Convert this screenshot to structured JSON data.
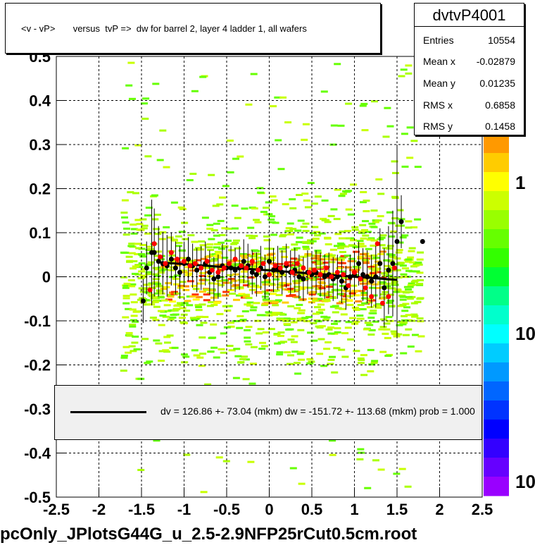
{
  "title": "<v - vP>       versus  tvP =>  dw for barrel 2, layer 4 ladder 1, all wafers",
  "stats": {
    "name": "dvtvP4001",
    "rows": [
      {
        "label": "Entries",
        "value": "10554"
      },
      {
        "label": "Mean x",
        "value": "-0.02879"
      },
      {
        "label": "Mean y",
        "value": "0.01235"
      },
      {
        "label": "RMS x",
        "value": "0.6858"
      },
      {
        "label": "RMS y",
        "value": "0.1458"
      }
    ]
  },
  "fit_legend": "dv =  126.86 +- 73.04 (mkm) dw = -151.72 +- 113.68 (mkm) prob = 1.000",
  "file_label": "pcOnly_JPlotsG44G_u_2.5-2.9NFP25rCut0.5cm.root",
  "colors": {
    "black_points": "#000000",
    "red_points": "#ff0000",
    "fit_line": "#000000"
  },
  "chart_data": {
    "type": "scatter",
    "title": "<v - vP>       versus  tvP =>  dw for barrel 2, layer 4 ladder 1, all wafers",
    "xlim": [
      -2.5,
      2.5
    ],
    "ylim": [
      -0.5,
      0.5
    ],
    "x_ticks": [
      "-2.5",
      "-2",
      "-1.5",
      "-1",
      "-0.5",
      "0",
      "0.5",
      "1",
      "1.5",
      "2",
      "2.5"
    ],
    "y_ticks": [
      "-0.5",
      "-0.4",
      "-0.3",
      "-0.2",
      "-0.1",
      "0",
      "0.1",
      "0.2",
      "0.3",
      "0.4",
      "0.5"
    ],
    "grid": true,
    "colorbar_labels": [
      "1",
      "10",
      "10"
    ],
    "fit_line": {
      "x": [
        -1.3,
        1.5
      ],
      "y": [
        0.033,
        -0.007
      ]
    },
    "black_series": {
      "x": [
        -1.48,
        -1.44,
        -1.38,
        -1.35,
        -1.3,
        -1.25,
        -1.2,
        -1.15,
        -1.1,
        -1.05,
        -1.0,
        -0.95,
        -0.9,
        -0.85,
        -0.8,
        -0.75,
        -0.7,
        -0.65,
        -0.6,
        -0.55,
        -0.5,
        -0.45,
        -0.4,
        -0.35,
        -0.3,
        -0.25,
        -0.2,
        -0.15,
        -0.1,
        -0.05,
        0.0,
        0.05,
        0.1,
        0.15,
        0.2,
        0.25,
        0.3,
        0.35,
        0.4,
        0.45,
        0.5,
        0.55,
        0.6,
        0.65,
        0.7,
        0.75,
        0.8,
        0.85,
        0.9,
        0.95,
        1.0,
        1.05,
        1.1,
        1.15,
        1.2,
        1.25,
        1.3,
        1.35,
        1.4,
        1.45,
        1.5,
        1.55,
        1.8
      ],
      "y": [
        -0.055,
        0.02,
        0.055,
        0.055,
        0.035,
        0.03,
        0.025,
        0.04,
        0.02,
        0.01,
        0.03,
        0.04,
        0.025,
        0.015,
        0.02,
        0.03,
        0.01,
        -0.005,
        0.0,
        0.025,
        0.02,
        0.02,
        0.015,
        0.02,
        0.035,
        0.025,
        0.01,
        0.005,
        0.02,
        0.0,
        0.035,
        0.015,
        0.02,
        0.01,
        0.025,
        0.01,
        0.015,
        0.0,
        -0.005,
        0.01,
        0.005,
        0.01,
        0.005,
        0.0,
        0.005,
        -0.005,
        0.0,
        -0.01,
        -0.025,
        0.0,
        0.005,
        0.03,
        0.005,
        0.0,
        -0.01,
        0.0,
        0.03,
        -0.025,
        0.015,
        0.03,
        0.08,
        0.125,
        0.08
      ],
      "err": [
        0.05,
        0.06,
        0.12,
        0.1,
        0.08,
        0.07,
        0.07,
        0.06,
        0.06,
        0.06,
        0.05,
        0.05,
        0.05,
        0.05,
        0.05,
        0.05,
        0.05,
        0.05,
        0.05,
        0.05,
        0.05,
        0.05,
        0.05,
        0.05,
        0.05,
        0.05,
        0.05,
        0.05,
        0.05,
        0.05,
        0.05,
        0.05,
        0.05,
        0.05,
        0.05,
        0.05,
        0.05,
        0.05,
        0.05,
        0.05,
        0.05,
        0.05,
        0.05,
        0.05,
        0.05,
        0.05,
        0.05,
        0.05,
        0.05,
        0.05,
        0.05,
        0.05,
        0.06,
        0.06,
        0.06,
        0.07,
        0.08,
        0.09,
        0.1,
        0.12,
        0.22,
        0.06,
        0.0
      ]
    },
    "red_series": {
      "x": [
        -1.4,
        -1.35,
        -1.28,
        -1.22,
        -1.15,
        -1.08,
        -1.0,
        -0.93,
        -0.87,
        -0.8,
        -0.73,
        -0.67,
        -0.6,
        -0.53,
        -0.47,
        -0.4,
        -0.33,
        -0.27,
        -0.2,
        -0.13,
        -0.07,
        0.0,
        0.07,
        0.13,
        0.2,
        0.27,
        0.33,
        0.4,
        0.47,
        0.53,
        0.6,
        0.67,
        0.73,
        0.8,
        0.87,
        0.93,
        1.0,
        1.07,
        1.13,
        1.2,
        1.27,
        1.33,
        1.4,
        1.47
      ],
      "y": [
        -0.03,
        0.075,
        0.045,
        0.03,
        0.055,
        0.04,
        0.035,
        0.025,
        0.03,
        0.02,
        0.035,
        0.015,
        0.01,
        0.02,
        0.03,
        0.04,
        0.025,
        0.02,
        0.035,
        0.015,
        0.03,
        0.005,
        0.025,
        0.02,
        0.03,
        0.01,
        0.03,
        0.02,
        0.01,
        0.015,
        0.005,
        0.02,
        0.0,
        0.01,
        0.005,
        -0.02,
        0.01,
        -0.005,
        -0.025,
        -0.045,
        0.075,
        -0.06,
        -0.045,
        0.02
      ]
    }
  }
}
